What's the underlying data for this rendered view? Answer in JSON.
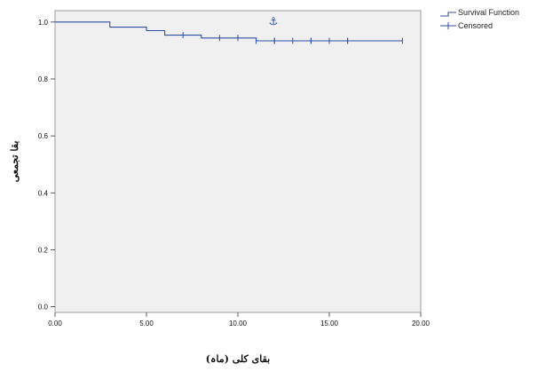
{
  "chart_data": {
    "type": "line",
    "title": "",
    "xlabel": "بقای کلی (ماہ)",
    "ylabel": "بقا تجمعی",
    "xlim": [
      0,
      20
    ],
    "ylim": [
      -0.02,
      1.04
    ],
    "x_ticks": [
      "0.00",
      "5.00",
      "10.00",
      "15.00",
      "20.00"
    ],
    "y_ticks": [
      "0.0",
      "0.2",
      "0.4",
      "0.6",
      "0.8",
      "1.0"
    ],
    "y_tick_values": [
      0.0,
      0.2,
      0.4,
      0.6,
      0.8,
      1.0
    ],
    "grid": false,
    "legend_position": "top-right, outside plot",
    "plot_background": "#f0f0f0",
    "series_color": "#2f4fa0",
    "series": [
      {
        "name": "Survival Function",
        "kind": "step",
        "x": [
          0,
          3,
          3,
          5,
          5,
          6,
          6,
          8,
          8,
          11,
          11,
          19
        ],
        "y": [
          1.0,
          1.0,
          0.982,
          0.982,
          0.97,
          0.97,
          0.954,
          0.954,
          0.944,
          0.944,
          0.934,
          0.934
        ]
      },
      {
        "name": "Censored",
        "kind": "markers",
        "x": [
          7,
          9,
          10,
          10,
          11,
          12,
          12,
          13,
          14,
          14,
          15,
          16,
          16,
          19
        ],
        "y": [
          0.954,
          0.944,
          0.944,
          0.944,
          0.934,
          0.934,
          0.934,
          0.934,
          0.934,
          0.934,
          0.934,
          0.934,
          0.934,
          0.934
        ]
      }
    ],
    "annotation_glyph": "⚓"
  }
}
